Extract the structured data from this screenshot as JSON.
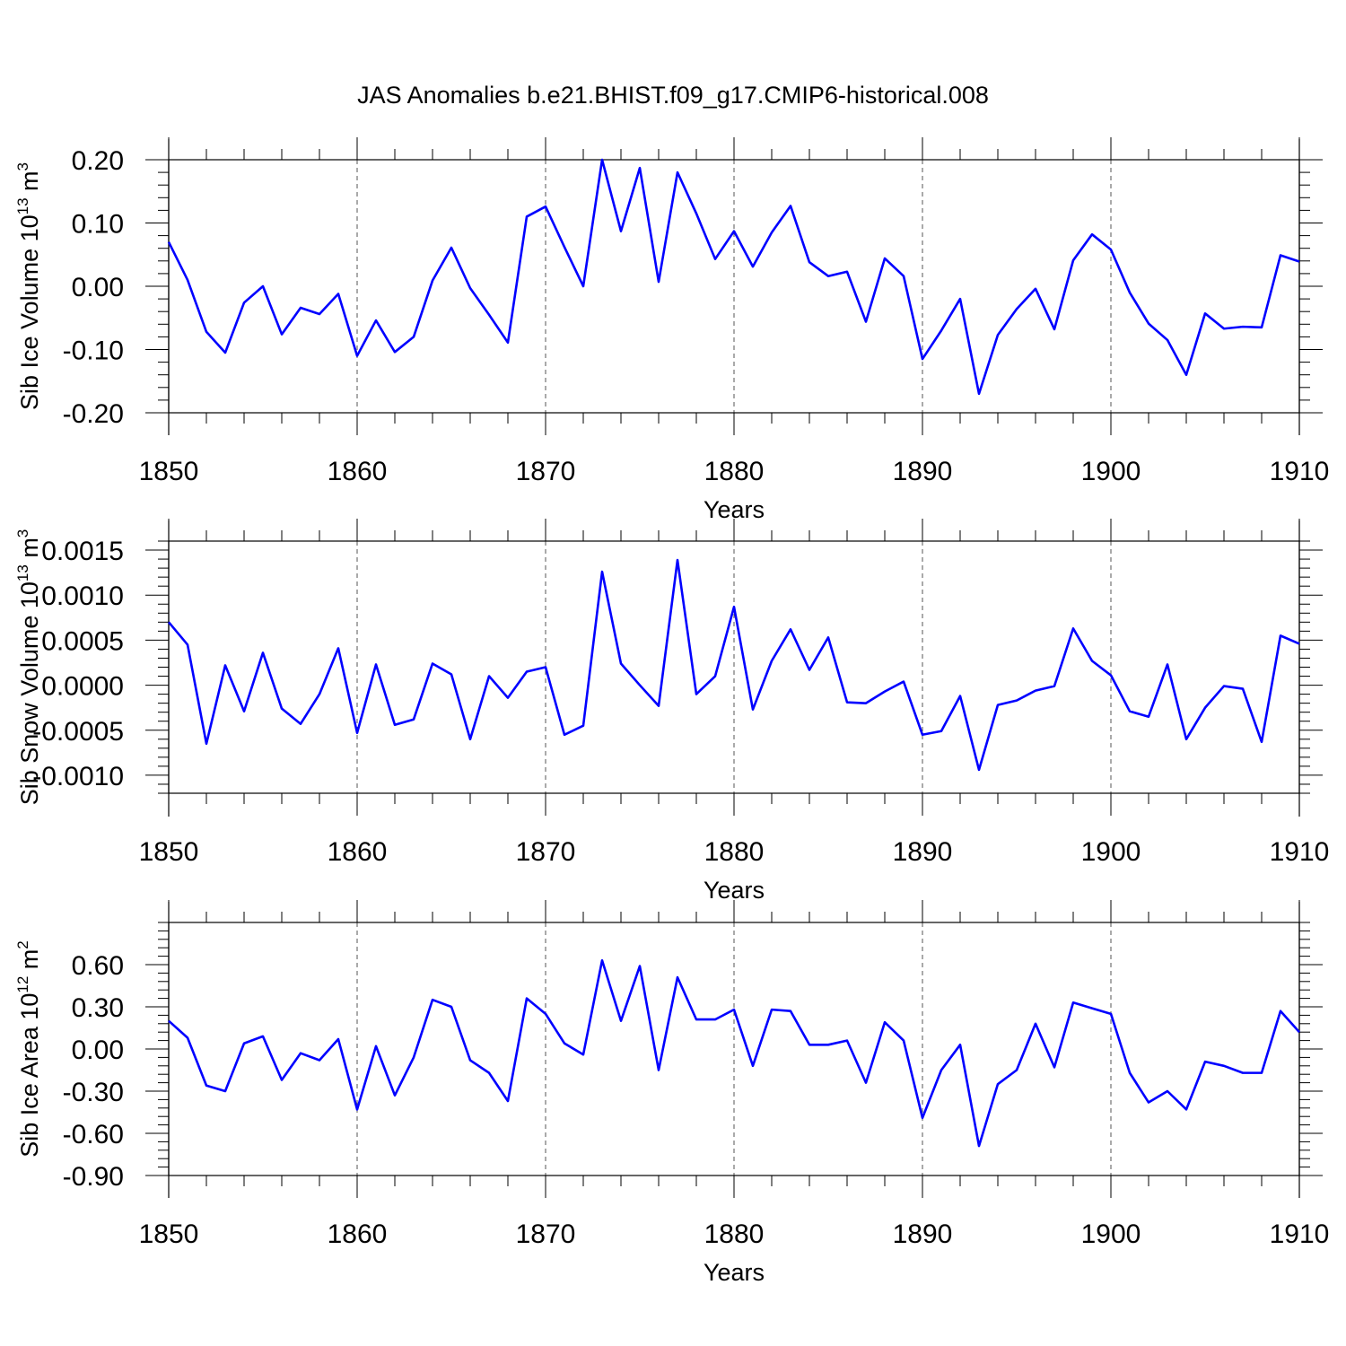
{
  "figure": {
    "title": "JAS Anomalies b.e21.BHIST.f09_g17.CMIP6-historical.008"
  },
  "colors": {
    "line": "#0000ff",
    "axis": "#000000",
    "grid": "#555555"
  },
  "chart_data": [
    {
      "type": "line",
      "ylabel_prefix": "Sib Ice Volume 10",
      "ylabel_exp": "13",
      "ylabel_unit": " m",
      "ylabel_unit_exp": "3",
      "xlabel": "Years",
      "xlim": [
        1850,
        1910
      ],
      "ylim": [
        -0.2,
        0.2
      ],
      "yticks": [
        -0.2,
        -0.1,
        0.0,
        0.1,
        0.2
      ],
      "ytick_labels": [
        "-0.20",
        "-0.10",
        "0.00",
        "0.10",
        "0.20"
      ],
      "xticks": [
        1850,
        1860,
        1870,
        1880,
        1890,
        1900,
        1910
      ],
      "grid": "vertical-dashed",
      "series": [
        {
          "x": [
            1850,
            1851,
            1852,
            1853,
            1854,
            1855,
            1856,
            1857,
            1858,
            1859,
            1860,
            1861,
            1862,
            1863,
            1864,
            1865,
            1866,
            1867,
            1868,
            1869,
            1870,
            1871,
            1872,
            1873,
            1874,
            1875,
            1876,
            1877,
            1878,
            1879,
            1880,
            1881,
            1882,
            1883,
            1884,
            1885,
            1886,
            1887,
            1888,
            1889,
            1890,
            1891,
            1892,
            1893,
            1894,
            1895,
            1896,
            1897,
            1898,
            1899,
            1900,
            1901,
            1902,
            1903,
            1904,
            1905,
            1906,
            1907,
            1908,
            1909,
            1910
          ],
          "values": [
            0.07,
            0.01,
            -0.072,
            -0.105,
            -0.026,
            0.0,
            -0.076,
            -0.034,
            -0.044,
            -0.012,
            -0.11,
            -0.054,
            -0.104,
            -0.08,
            0.009,
            0.061,
            -0.003,
            -0.045,
            -0.089,
            0.11,
            0.126,
            0.062,
            0.0,
            0.2,
            0.087,
            0.187,
            0.007,
            0.18,
            0.115,
            0.043,
            0.087,
            0.031,
            0.085,
            0.127,
            0.038,
            0.016,
            0.023,
            -0.056,
            0.044,
            0.016,
            -0.115,
            -0.07,
            -0.02,
            -0.17,
            -0.077,
            -0.036,
            -0.004,
            -0.068,
            0.041,
            0.082,
            0.058,
            -0.01,
            -0.059,
            -0.085,
            -0.14,
            -0.043,
            -0.067,
            -0.064,
            -0.065,
            0.049,
            0.039
          ]
        }
      ]
    },
    {
      "type": "line",
      "ylabel_prefix": "Sib Snow Volume 10",
      "ylabel_exp": "13",
      "ylabel_unit": " m",
      "ylabel_unit_exp": "3",
      "xlabel": "Years",
      "xlim": [
        1850,
        1910
      ],
      "ylim": [
        -0.0012,
        0.0016
      ],
      "yticks": [
        -0.001,
        -0.0005,
        0.0,
        0.0005,
        0.001,
        0.0015
      ],
      "ytick_labels": [
        "-0.0010",
        "-0.0005",
        "0.0000",
        "0.0005",
        "0.0010",
        "0.0015"
      ],
      "xticks": [
        1850,
        1860,
        1870,
        1880,
        1890,
        1900,
        1910
      ],
      "grid": "vertical-dashed",
      "series": [
        {
          "x": [
            1850,
            1851,
            1852,
            1853,
            1854,
            1855,
            1856,
            1857,
            1858,
            1859,
            1860,
            1861,
            1862,
            1863,
            1864,
            1865,
            1866,
            1867,
            1868,
            1869,
            1870,
            1871,
            1872,
            1873,
            1874,
            1875,
            1876,
            1877,
            1878,
            1879,
            1880,
            1881,
            1882,
            1883,
            1884,
            1885,
            1886,
            1887,
            1888,
            1889,
            1890,
            1891,
            1892,
            1893,
            1894,
            1895,
            1896,
            1897,
            1898,
            1899,
            1900,
            1901,
            1902,
            1903,
            1904,
            1905,
            1906,
            1907,
            1908,
            1909,
            1910
          ],
          "values": [
            0.0007,
            0.00045,
            -0.00065,
            0.00022,
            -0.00029,
            0.00036,
            -0.00026,
            -0.00043,
            -0.0001,
            0.00041,
            -0.00053,
            0.00023,
            -0.00044,
            -0.00038,
            0.00024,
            0.00012,
            -0.0006,
            0.0001,
            -0.00014,
            0.00015,
            0.0002,
            -0.00055,
            -0.00045,
            0.00126,
            0.00024,
            0.0,
            -0.00023,
            0.00139,
            -0.0001,
            0.0001,
            0.00087,
            -0.00027,
            0.00027,
            0.00062,
            0.00017,
            0.00053,
            -0.00019,
            -0.0002,
            -7e-05,
            4e-05,
            -0.00055,
            -0.00051,
            -0.00012,
            -0.00094,
            -0.00022,
            -0.00017,
            -6e-05,
            -1e-05,
            0.00063,
            0.00027,
            0.00011,
            -0.00029,
            -0.00035,
            0.00023,
            -0.0006,
            -0.00025,
            -1e-05,
            -4e-05,
            -0.00063,
            0.00055,
            0.00046
          ]
        }
      ]
    },
    {
      "type": "line",
      "ylabel_prefix": "Sib Ice Area 10",
      "ylabel_exp": "12",
      "ylabel_unit": " m",
      "ylabel_unit_exp": "2",
      "xlabel": "Years",
      "xlim": [
        1850,
        1910
      ],
      "ylim": [
        -0.9,
        0.9
      ],
      "yticks": [
        -0.9,
        -0.6,
        -0.3,
        0.0,
        0.3,
        0.6
      ],
      "ytick_labels": [
        "-0.90",
        "-0.60",
        "-0.30",
        "0.00",
        "0.30",
        "0.60"
      ],
      "xticks": [
        1850,
        1860,
        1870,
        1880,
        1890,
        1900,
        1910
      ],
      "grid": "vertical-dashed",
      "series": [
        {
          "x": [
            1850,
            1851,
            1852,
            1853,
            1854,
            1855,
            1856,
            1857,
            1858,
            1859,
            1860,
            1861,
            1862,
            1863,
            1864,
            1865,
            1866,
            1867,
            1868,
            1869,
            1870,
            1871,
            1872,
            1873,
            1874,
            1875,
            1876,
            1877,
            1878,
            1879,
            1880,
            1881,
            1882,
            1883,
            1884,
            1885,
            1886,
            1887,
            1888,
            1889,
            1890,
            1891,
            1892,
            1893,
            1894,
            1895,
            1896,
            1897,
            1898,
            1899,
            1900,
            1901,
            1902,
            1903,
            1904,
            1905,
            1906,
            1907,
            1908,
            1909,
            1910
          ],
          "values": [
            0.2,
            0.08,
            -0.26,
            -0.3,
            0.04,
            0.09,
            -0.22,
            -0.03,
            -0.08,
            0.07,
            -0.43,
            0.02,
            -0.33,
            -0.06,
            0.35,
            0.3,
            -0.08,
            -0.17,
            -0.37,
            0.36,
            0.25,
            0.04,
            -0.04,
            0.63,
            0.2,
            0.59,
            -0.15,
            0.51,
            0.21,
            0.21,
            0.28,
            -0.12,
            0.28,
            0.27,
            0.03,
            0.03,
            0.06,
            -0.24,
            0.19,
            0.06,
            -0.49,
            -0.15,
            0.03,
            -0.69,
            -0.25,
            -0.15,
            0.18,
            -0.13,
            0.33,
            0.29,
            0.25,
            -0.17,
            -0.38,
            -0.3,
            -0.43,
            -0.09,
            -0.12,
            -0.17,
            -0.17,
            0.27,
            0.12
          ]
        }
      ]
    }
  ]
}
